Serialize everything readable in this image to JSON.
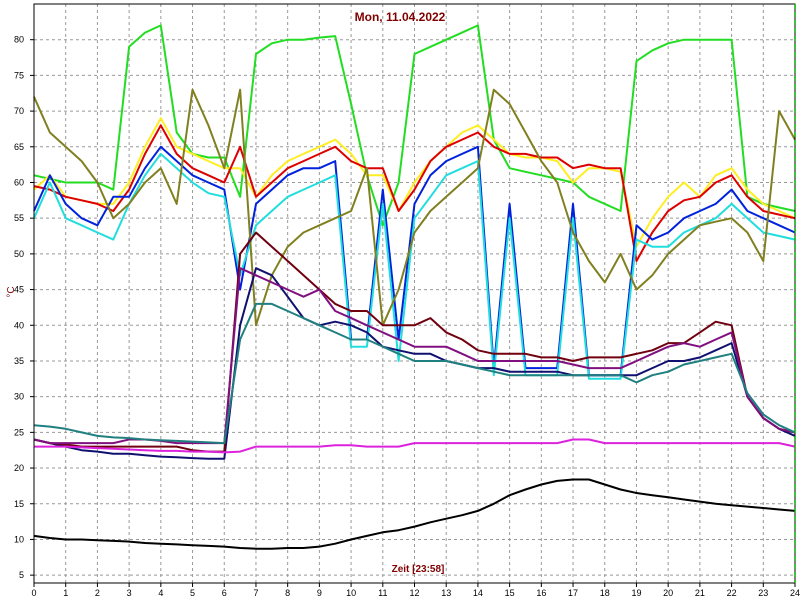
{
  "chart_data": {
    "type": "line",
    "title": "Mon, 11.04.2022",
    "xlabel": "Zeit [23:58]",
    "ylabel": "°C",
    "xlim": [
      0,
      24
    ],
    "ylim": [
      3.9,
      85
    ],
    "xticks": [
      0,
      1,
      2,
      3,
      4,
      5,
      6,
      7,
      8,
      9,
      10,
      11,
      12,
      13,
      14,
      15,
      16,
      17,
      18,
      19,
      20,
      21,
      22,
      23,
      24
    ],
    "yticks": [
      5,
      10,
      15,
      20,
      25,
      30,
      35,
      40,
      45,
      50,
      55,
      60,
      65,
      70,
      75,
      80
    ],
    "grid": true,
    "x": [
      0,
      0.5,
      1,
      1.5,
      2,
      2.5,
      3,
      3.5,
      4,
      4.5,
      5,
      5.5,
      6,
      6.5,
      7,
      7.5,
      8,
      8.5,
      9,
      9.5,
      10,
      10.5,
      11,
      11.5,
      12,
      12.5,
      13,
      13.5,
      14,
      14.5,
      15,
      15.5,
      16,
      16.5,
      17,
      17.5,
      18,
      18.5,
      19,
      19.5,
      20,
      20.5,
      21,
      21.5,
      22,
      22.5,
      23,
      23.5,
      24
    ],
    "series": [
      {
        "color": "#22dd22",
        "values": [
          61,
          60.5,
          60,
          60,
          60,
          59,
          79,
          81,
          82,
          67,
          64,
          63.5,
          63.5,
          58,
          78,
          79.5,
          80,
          80,
          80.3,
          80.5,
          71,
          61,
          54,
          60,
          78,
          79,
          80,
          81,
          82,
          66,
          62,
          61.5,
          61,
          60.5,
          60,
          58,
          57,
          56,
          77,
          78.5,
          79.5,
          80,
          80,
          80,
          80,
          58,
          57,
          56.5,
          56
        ]
      },
      {
        "color": "#ffee22",
        "values": [
          59,
          61,
          58,
          57.5,
          57,
          57,
          60,
          65,
          69,
          65,
          64,
          63,
          62,
          62,
          58,
          61,
          63,
          64,
          65,
          66,
          64,
          61,
          61,
          56,
          60,
          63,
          65,
          67,
          68,
          66,
          64,
          63.5,
          63.5,
          63,
          60,
          62,
          62,
          61.5,
          51,
          55,
          58,
          60,
          58,
          61,
          62,
          59,
          57,
          56,
          55
        ]
      },
      {
        "color": "#dd0000",
        "values": [
          59.5,
          59,
          58,
          57.5,
          57,
          56,
          59,
          64,
          68,
          64,
          62,
          61,
          60,
          65,
          58,
          60,
          62,
          63,
          64,
          65,
          63,
          62,
          62,
          56,
          59,
          63,
          65,
          66,
          67,
          65,
          64,
          64,
          63.5,
          63.5,
          62,
          62.5,
          62,
          62,
          49,
          53,
          56,
          57.5,
          58,
          60,
          61,
          58,
          56,
          55.5,
          55
        ]
      },
      {
        "color": "#0022dd",
        "values": [
          56,
          61,
          57,
          55,
          54,
          58,
          58,
          62,
          65,
          63,
          61,
          60,
          59,
          45,
          57,
          59,
          61,
          62,
          62,
          63,
          38,
          38,
          59,
          38,
          57,
          61,
          63,
          64,
          65,
          34,
          57,
          34,
          34,
          34,
          57,
          33,
          33,
          33,
          54,
          52,
          53,
          55,
          56,
          57,
          59,
          56,
          55,
          54,
          53
        ]
      },
      {
        "color": "#22dddd",
        "values": [
          55,
          60,
          55,
          54,
          53,
          52,
          57,
          61,
          64,
          62,
          60,
          58.5,
          58,
          47,
          54,
          56,
          58,
          59,
          60,
          61,
          37,
          37,
          57,
          35,
          55,
          58,
          61,
          62,
          63,
          33,
          55,
          33,
          33,
          33,
          55,
          32.5,
          32.5,
          32.5,
          52,
          51,
          51,
          53,
          54,
          55,
          57,
          55,
          53,
          52.5,
          52
        ]
      },
      {
        "color": "#808020",
        "values": [
          72,
          67,
          65,
          63,
          60,
          55,
          57,
          60,
          62,
          57,
          73,
          68,
          62,
          73,
          40,
          47,
          51,
          53,
          54,
          55,
          56,
          62,
          40,
          45,
          53,
          56,
          58,
          60,
          62,
          73,
          71,
          67,
          63,
          60,
          53,
          49,
          46,
          50,
          45,
          47,
          50,
          52,
          54,
          54.5,
          55,
          53,
          49,
          70,
          66
        ]
      },
      {
        "color": "#101070",
        "values": [
          24,
          23.5,
          23,
          22.5,
          22.3,
          22,
          22,
          21.8,
          21.6,
          21.5,
          21.4,
          21.3,
          21.3,
          40,
          48,
          47,
          44,
          41,
          40,
          40.5,
          40,
          39,
          37,
          36.5,
          36,
          36,
          35,
          34.5,
          34,
          34,
          33.5,
          33.5,
          33.5,
          33.5,
          33,
          33,
          33,
          33,
          33,
          34,
          35,
          35,
          35.5,
          36.5,
          37.5,
          30,
          27,
          25.5,
          24.5
        ]
      },
      {
        "color": "#700010",
        "values": [
          24,
          23.5,
          23.3,
          23,
          23,
          23,
          23,
          23,
          23,
          23,
          22.5,
          22.3,
          22.3,
          50,
          53,
          51,
          49,
          47,
          45,
          43,
          42,
          42,
          40,
          40,
          40,
          41,
          39,
          38,
          36.5,
          36,
          36,
          36,
          35.5,
          35.5,
          35,
          35.5,
          35.5,
          35.5,
          36,
          36.5,
          37.5,
          37.5,
          39,
          40.5,
          40,
          30,
          27,
          25.5,
          25
        ]
      },
      {
        "color": "#801080",
        "values": [
          24,
          23.5,
          23.5,
          23.5,
          23.5,
          23.5,
          24,
          24,
          23.8,
          23.5,
          23.5,
          23.5,
          23.5,
          48,
          47,
          46,
          45,
          44,
          45,
          42,
          41,
          40,
          39,
          38,
          37,
          37,
          37,
          36,
          35,
          35,
          35,
          35,
          35,
          35,
          34.5,
          34,
          34,
          34,
          35,
          36,
          37,
          37.5,
          37,
          38,
          39,
          30,
          27,
          25.5,
          25
        ]
      },
      {
        "color": "#208080",
        "values": [
          26,
          25.8,
          25.5,
          25,
          24.5,
          24.3,
          24.2,
          24,
          23.9,
          23.8,
          23.7,
          23.6,
          23.5,
          38,
          43,
          43,
          42,
          41,
          40,
          39,
          38,
          38,
          37,
          36,
          35,
          35,
          35,
          34.5,
          34,
          33.5,
          33,
          33,
          33,
          33,
          33,
          33,
          33,
          33,
          32,
          33,
          33.5,
          34.5,
          35,
          35.5,
          36,
          30.5,
          27.5,
          26,
          25
        ]
      },
      {
        "color": "#dd22dd",
        "values": [
          23,
          23,
          23,
          22.9,
          22.8,
          22.7,
          22.6,
          22.5,
          22.4,
          22.4,
          22.3,
          22.3,
          22.2,
          22.3,
          23,
          23,
          23,
          23,
          23,
          23.2,
          23.2,
          23,
          23,
          23,
          23.5,
          23.5,
          23.5,
          23.5,
          23.5,
          23.5,
          23.5,
          23.5,
          23.5,
          23.5,
          24,
          24,
          23.5,
          23.5,
          23.5,
          23.5,
          23.5,
          23.5,
          23.5,
          23.5,
          23.5,
          23.5,
          23.5,
          23.5,
          23
        ]
      },
      {
        "color": "#000000",
        "values": [
          10.5,
          10.2,
          10,
          10,
          9.9,
          9.8,
          9.7,
          9.5,
          9.4,
          9.3,
          9.2,
          9.1,
          9,
          8.8,
          8.7,
          8.7,
          8.8,
          8.8,
          9,
          9.4,
          10,
          10.5,
          11,
          11.3,
          11.8,
          12.4,
          12.9,
          13.4,
          14,
          15,
          16.2,
          17,
          17.7,
          18.2,
          18.4,
          18.4,
          17.7,
          17,
          16.5,
          16.2,
          15.9,
          15.6,
          15.3,
          15,
          14.8,
          14.6,
          14.4,
          14.2,
          14
        ]
      }
    ]
  }
}
